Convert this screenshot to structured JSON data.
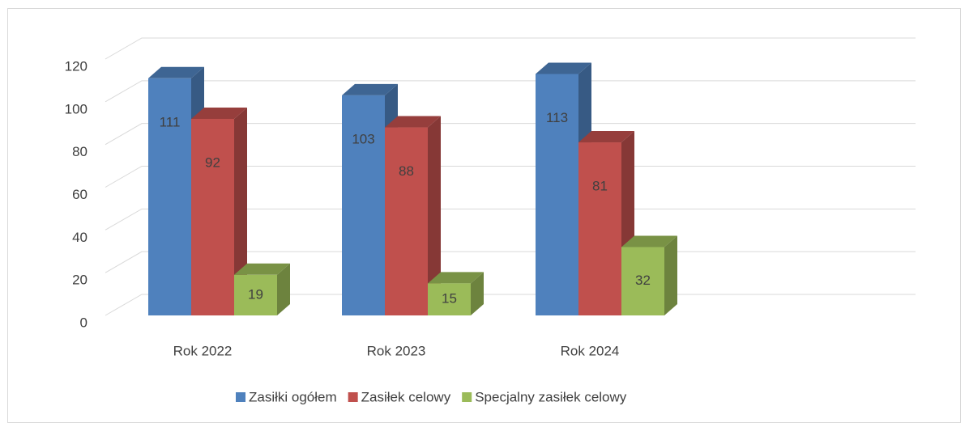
{
  "chart_data": {
    "type": "bar3d",
    "categories": [
      "Rok 2022",
      "Rok 2023",
      "Rok 2024"
    ],
    "series": [
      {
        "name": "Zasiłki ogółem",
        "color": "#4f81bd",
        "values": [
          111,
          103,
          113
        ]
      },
      {
        "name": "Zasiłek celowy",
        "color": "#c0504d",
        "values": [
          92,
          88,
          81
        ]
      },
      {
        "name": "Specjalny zasiłek celowy",
        "color": "#9bbb59",
        "values": [
          19,
          15,
          32
        ]
      }
    ],
    "ylim": [
      0,
      120
    ],
    "yticks": [
      0,
      20,
      40,
      60,
      80,
      100,
      120
    ],
    "grid": true,
    "legend": "bottom"
  }
}
